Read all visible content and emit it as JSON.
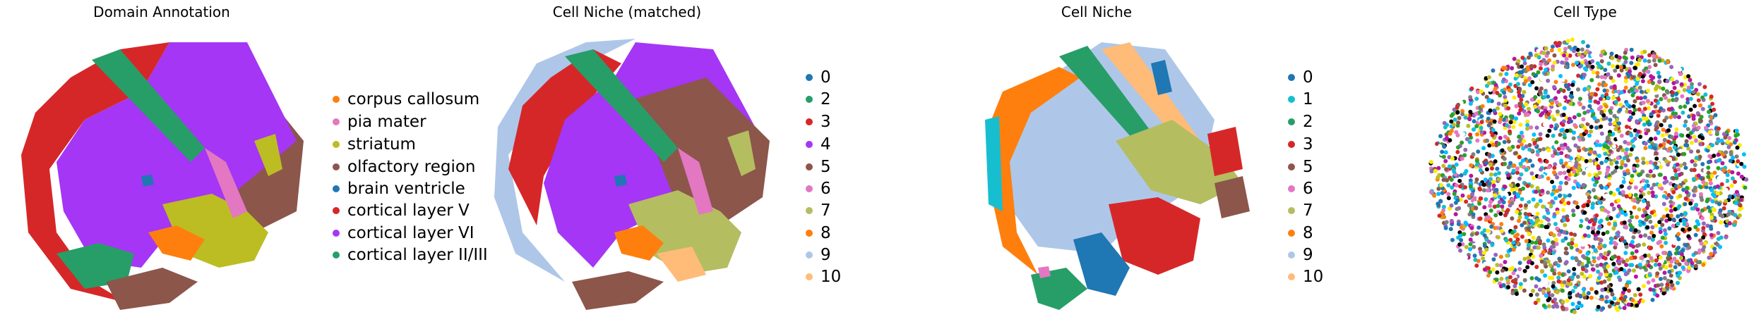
{
  "chart_data": [
    {
      "type": "scatter",
      "title": "Domain Annotation",
      "xlabel": "",
      "ylabel": "",
      "grid": false,
      "legend": "right",
      "series": [
        {
          "name": "corpus callosum",
          "color": "#ff7f0e"
        },
        {
          "name": "pia mater",
          "color": "#e377c2"
        },
        {
          "name": "striatum",
          "color": "#bcbd22"
        },
        {
          "name": "olfactory region",
          "color": "#8c564b"
        },
        {
          "name": "brain ventricle",
          "color": "#1f77b4"
        },
        {
          "name": "cortical layer V",
          "color": "#d62728"
        },
        {
          "name": "cortical layer VI",
          "color": "#a536f5"
        },
        {
          "name": "cortical layer II/III",
          "color": "#279e68"
        }
      ]
    },
    {
      "type": "scatter",
      "title": "Cell Niche (matched)",
      "xlabel": "",
      "ylabel": "",
      "grid": false,
      "legend": "right",
      "series": [
        {
          "name": "0",
          "color": "#1f77b4"
        },
        {
          "name": "2",
          "color": "#279e68"
        },
        {
          "name": "3",
          "color": "#d62728"
        },
        {
          "name": "4",
          "color": "#a536f5"
        },
        {
          "name": "5",
          "color": "#8c564b"
        },
        {
          "name": "6",
          "color": "#e377c2"
        },
        {
          "name": "7",
          "color": "#b5bd61"
        },
        {
          "name": "8",
          "color": "#ff7f0e"
        },
        {
          "name": "9",
          "color": "#aec7e8"
        },
        {
          "name": "10",
          "color": "#ffbb78"
        }
      ]
    },
    {
      "type": "scatter",
      "title": "Cell Niche",
      "xlabel": "",
      "ylabel": "",
      "grid": false,
      "legend": "right",
      "series": [
        {
          "name": "0",
          "color": "#1f77b4"
        },
        {
          "name": "1",
          "color": "#17becf"
        },
        {
          "name": "2",
          "color": "#279e68"
        },
        {
          "name": "3",
          "color": "#d62728"
        },
        {
          "name": "5",
          "color": "#8c564b"
        },
        {
          "name": "6",
          "color": "#e377c2"
        },
        {
          "name": "7",
          "color": "#b5bd61"
        },
        {
          "name": "8",
          "color": "#ff7f0e"
        },
        {
          "name": "9",
          "color": "#aec7e8"
        },
        {
          "name": "10",
          "color": "#ffbb78"
        }
      ]
    },
    {
      "type": "scatter",
      "title": "Cell Type",
      "xlabel": "",
      "ylabel": "",
      "grid": false,
      "legend": "none",
      "series": []
    }
  ],
  "palette": {
    "cell_type": [
      "#1f77b4",
      "#ffeb00",
      "#d62728",
      "#2ca02c",
      "#e377c2",
      "#17becf",
      "#ff7f0e",
      "#000000",
      "#9467bd",
      "#b5179e",
      "#ffffff",
      "#8c564b",
      "#bcbd22",
      "#00bfff",
      "#7f7f7f"
    ]
  }
}
